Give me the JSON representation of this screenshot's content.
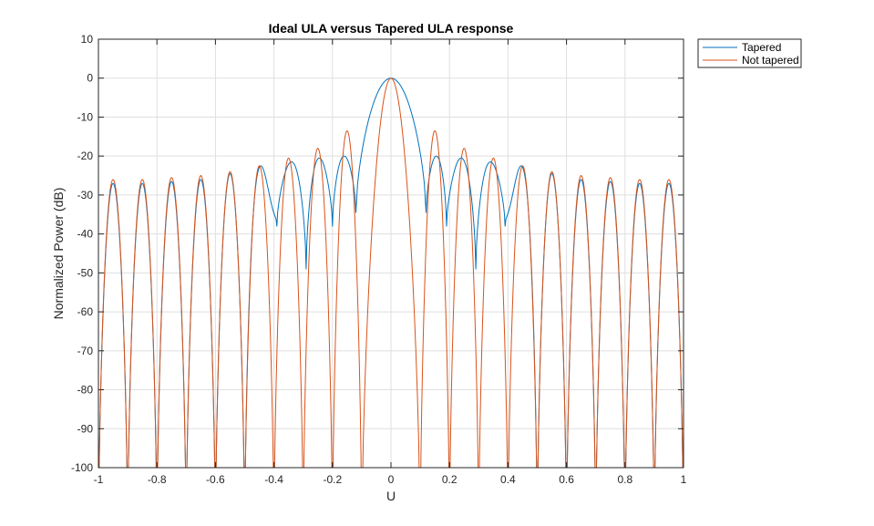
{
  "chart_data": {
    "type": "line",
    "title": "Ideal ULA versus Tapered ULA response",
    "xlabel": "U",
    "ylabel": "Normalized Power (dB)",
    "xlim": [
      -1,
      1
    ],
    "ylim": [
      -100,
      10
    ],
    "xticks": [
      -1,
      -0.8,
      -0.6,
      -0.4,
      -0.2,
      0,
      0.2,
      0.4,
      0.6,
      0.8,
      1
    ],
    "xtick_labels": [
      "-1",
      "-0.8",
      "-0.6",
      "-0.4",
      "-0.2",
      "0",
      "0.2",
      "0.4",
      "0.6",
      "0.8",
      "1"
    ],
    "yticks": [
      10,
      0,
      -10,
      -20,
      -30,
      -40,
      -50,
      -60,
      -70,
      -80,
      -90,
      -100
    ],
    "ytick_labels": [
      "10",
      "0",
      "-10",
      "-20",
      "-30",
      "-40",
      "-50",
      "-60",
      "-70",
      "-80",
      "-90",
      "-100"
    ],
    "grid": true,
    "legend_position": "outside-top-right",
    "nulls": [
      -1,
      -0.9,
      -0.8,
      -0.7,
      -0.6,
      -0.5,
      -0.4,
      -0.3,
      -0.2,
      -0.1,
      0.1,
      0.2,
      0.3,
      0.4,
      0.5,
      0.6,
      0.7,
      0.8,
      0.9,
      1
    ],
    "series": [
      {
        "name": "Tapered",
        "color": "#0072BD",
        "main_lobe_half_width": 0.12,
        "lobe_peaks": [
          {
            "x": -0.95,
            "y": -27
          },
          {
            "x": -0.85,
            "y": -27
          },
          {
            "x": -0.75,
            "y": -26.5
          },
          {
            "x": -0.65,
            "y": -26
          },
          {
            "x": -0.55,
            "y": -24.5
          },
          {
            "x": -0.45,
            "y": -22.5
          },
          {
            "x": -0.35,
            "y": -21.5
          },
          {
            "x": -0.25,
            "y": -20.5
          },
          {
            "x": -0.15,
            "y": -20
          },
          {
            "x": 0,
            "y": 0
          },
          {
            "x": 0.15,
            "y": -20
          },
          {
            "x": 0.25,
            "y": -20.5
          },
          {
            "x": 0.35,
            "y": -21.5
          },
          {
            "x": 0.45,
            "y": -22.5
          },
          {
            "x": 0.55,
            "y": -24.5
          },
          {
            "x": 0.65,
            "y": -26
          },
          {
            "x": 0.75,
            "y": -26.5
          },
          {
            "x": 0.85,
            "y": -27
          },
          {
            "x": 0.95,
            "y": -27
          }
        ],
        "dips": [
          {
            "x": -0.39,
            "y": -38
          },
          {
            "x": -0.29,
            "y": -49
          },
          {
            "x": -0.2,
            "y": -38
          },
          {
            "x": -0.12,
            "y": -34.5
          },
          {
            "x": 0.12,
            "y": -34.5
          },
          {
            "x": 0.19,
            "y": -38
          },
          {
            "x": 0.29,
            "y": -49
          },
          {
            "x": 0.39,
            "y": -38
          }
        ]
      },
      {
        "name": "Not tapered",
        "color": "#D95319",
        "main_lobe_half_width": 0.1,
        "lobe_peaks": [
          {
            "x": -0.95,
            "y": -26
          },
          {
            "x": -0.85,
            "y": -26
          },
          {
            "x": -0.75,
            "y": -25.5
          },
          {
            "x": -0.65,
            "y": -25
          },
          {
            "x": -0.55,
            "y": -24
          },
          {
            "x": -0.45,
            "y": -22.5
          },
          {
            "x": -0.35,
            "y": -20.5
          },
          {
            "x": -0.25,
            "y": -18
          },
          {
            "x": -0.15,
            "y": -13.5
          },
          {
            "x": 0,
            "y": 0
          },
          {
            "x": 0.15,
            "y": -13.5
          },
          {
            "x": 0.25,
            "y": -18
          },
          {
            "x": 0.35,
            "y": -20.5
          },
          {
            "x": 0.45,
            "y": -22.5
          },
          {
            "x": 0.55,
            "y": -24
          },
          {
            "x": 0.65,
            "y": -25
          },
          {
            "x": 0.75,
            "y": -25.5
          },
          {
            "x": 0.85,
            "y": -26
          },
          {
            "x": 0.95,
            "y": -26
          }
        ]
      }
    ]
  }
}
